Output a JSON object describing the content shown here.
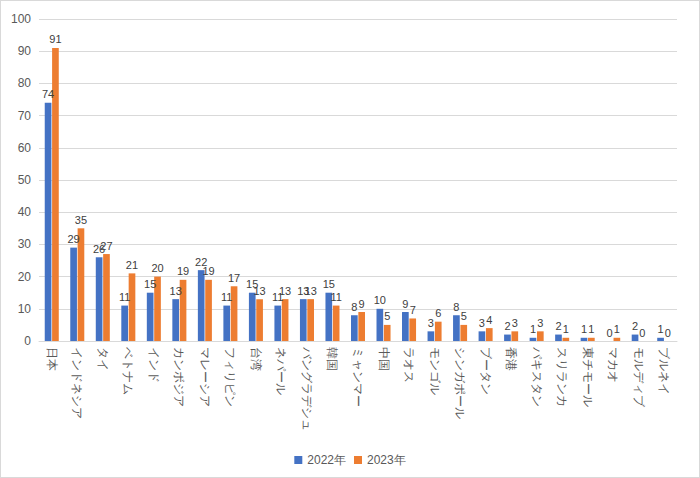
{
  "chart_data": {
    "type": "bar",
    "categories": [
      "日本",
      "インドネシア",
      "タイ",
      "ベトナム",
      "インド",
      "カンボジア",
      "マレーシア",
      "フィリピン",
      "台湾",
      "ネパール",
      "バングラデシュ",
      "韓国",
      "ミャンマー",
      "中国",
      "ラオス",
      "モンゴル",
      "シンガポール",
      "ブータン",
      "香港",
      "パキスタン",
      "スリランカ",
      "東チモール",
      "マカオ",
      "モルディブ",
      "ブルネイ"
    ],
    "series": [
      {
        "name": "2022年",
        "color": "#4472c4",
        "values": [
          74,
          29,
          26,
          11,
          15,
          13,
          22,
          11,
          15,
          11,
          13,
          15,
          8,
          10,
          9,
          3,
          8,
          3,
          2,
          1,
          2,
          1,
          0,
          2,
          1
        ]
      },
      {
        "name": "2023年",
        "color": "#ed7d31",
        "values": [
          91,
          35,
          27,
          21,
          20,
          19,
          19,
          17,
          13,
          13,
          13,
          11,
          9,
          5,
          7,
          6,
          5,
          4,
          3,
          3,
          1,
          1,
          1,
          0,
          0
        ]
      }
    ],
    "ylim": [
      0,
      100
    ],
    "yticks": [
      0,
      10,
      20,
      30,
      40,
      50,
      60,
      70,
      80,
      90,
      100
    ],
    "grid": true,
    "legend": "bottom",
    "data_labels": true
  }
}
